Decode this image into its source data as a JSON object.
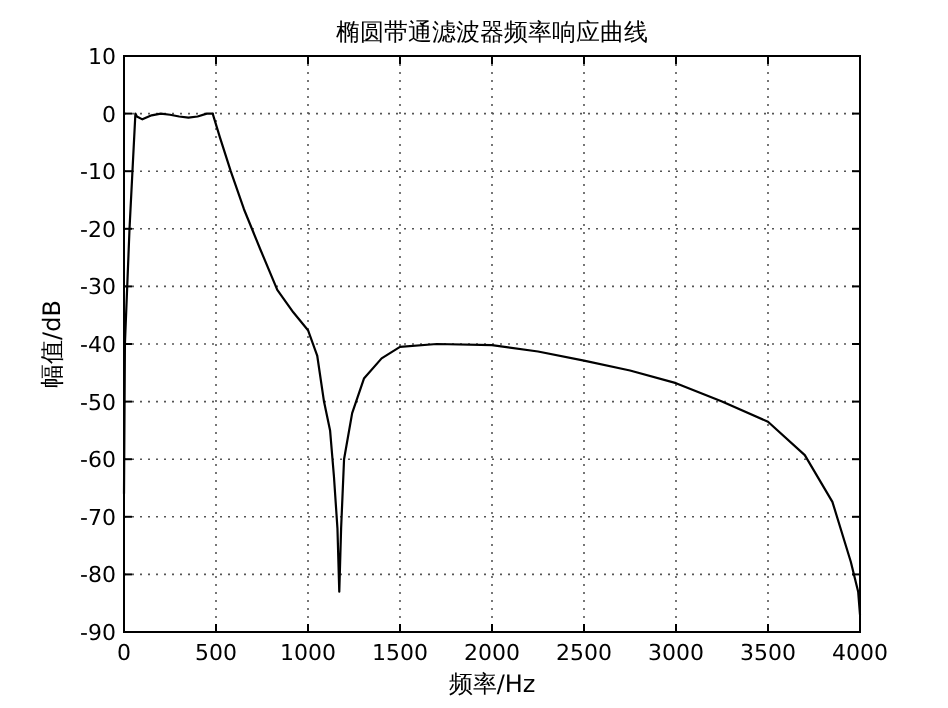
{
  "chart_data": {
    "type": "line",
    "title": "椭圆带通滤波器频率响应曲线",
    "xlabel": "频率/Hz",
    "ylabel": "幅值/dB",
    "xlim": [
      0,
      4000
    ],
    "xticks": [
      0,
      500,
      1000,
      1500,
      2000,
      2500,
      3000,
      3500,
      4000
    ],
    "ylim": [
      -90,
      10
    ],
    "yticks": [
      -90,
      -80,
      -70,
      -60,
      -50,
      -40,
      -30,
      -20,
      -10,
      0,
      10
    ],
    "grid": true,
    "line_style": "solid",
    "marker": "none",
    "series": [
      {
        "color": "#000000",
        "x": [
          0,
          5,
          30,
          62,
          70,
          100,
          150,
          200,
          250,
          300,
          350,
          400,
          450,
          482,
          520,
          580,
          652,
          740,
          833,
          920,
          1000,
          1050,
          1087,
          1120,
          1141,
          1160,
          1170,
          1180,
          1196,
          1240,
          1304,
          1400,
          1500,
          1700,
          2000,
          2250,
          2500,
          2750,
          3000,
          3250,
          3500,
          3700,
          3850,
          3950,
          3990,
          4000
        ],
        "values": [
          -66,
          -40,
          -20,
          0,
          -0.5,
          -1,
          -0.3,
          0,
          -0.2,
          -0.5,
          -0.7,
          -0.5,
          0,
          0,
          -4,
          -10,
          -16.6,
          -23.5,
          -30.6,
          -34.5,
          -37.6,
          -42,
          -50,
          -55,
          -63,
          -72,
          -83,
          -72,
          -60,
          -52,
          -46,
          -42.5,
          -40.5,
          -40,
          -40.2,
          -41.3,
          -42.9,
          -44.6,
          -46.8,
          -50,
          -53.5,
          -59.3,
          -67.4,
          -77.8,
          -83,
          -87
        ]
      }
    ]
  }
}
